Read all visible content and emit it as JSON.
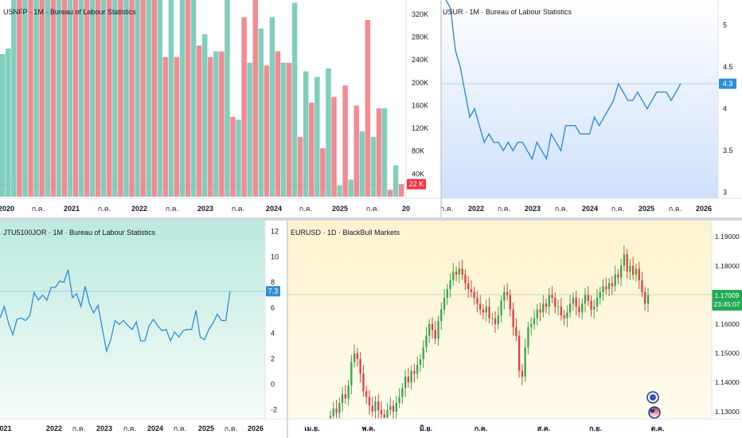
{
  "colors": {
    "up": "#7fcfbc",
    "down": "#f28b94",
    "line": "#2f8fd6",
    "candle_up": "#3aa34a",
    "candle_down": "#dd3f3f",
    "divider": "#d4d7dc",
    "axis_text": "#131722"
  },
  "chart_data": [
    {
      "id": "usnfp",
      "type": "bar",
      "title": "USNFP · 1M · Bureau of Labour Statistics",
      "xlabel": "",
      "ylabel": "",
      "ylim": [
        0,
        345
      ],
      "value_unit": "K",
      "x_tick_labels": [
        "2020",
        "ก.ค.",
        "2021",
        "ก.ค.",
        "2022",
        "ก.ค.",
        "2023",
        "ก.ค.",
        "2024",
        "ก.ค.",
        "2025",
        "ก.ค.",
        "20"
      ],
      "y_tick_labels": [
        "40K",
        "80K",
        "120K",
        "160K",
        "200K",
        "240K",
        "280K",
        "320K"
      ],
      "y_tick_values": [
        40,
        80,
        120,
        160,
        200,
        240,
        280,
        320
      ],
      "last_value_label": "22 K",
      "last_value": 22,
      "bars": [
        {
          "value": 250,
          "dir": "up"
        },
        {
          "value": 260,
          "dir": "up"
        },
        {
          "value": 345,
          "dir": "up"
        },
        {
          "value": 345,
          "dir": "down"
        },
        {
          "value": 345,
          "dir": "up"
        },
        {
          "value": 345,
          "dir": "down"
        },
        {
          "value": 345,
          "dir": "up"
        },
        {
          "value": 345,
          "dir": "down"
        },
        {
          "value": 345,
          "dir": "up"
        },
        {
          "value": 345,
          "dir": "down"
        },
        {
          "value": 345,
          "dir": "up"
        },
        {
          "value": 345,
          "dir": "down"
        },
        {
          "value": 345,
          "dir": "up"
        },
        {
          "value": 345,
          "dir": "down"
        },
        {
          "value": 345,
          "dir": "up"
        },
        {
          "value": 345,
          "dir": "down"
        },
        {
          "value": 345,
          "dir": "up"
        },
        {
          "value": 345,
          "dir": "down"
        },
        {
          "value": 345,
          "dir": "up"
        },
        {
          "value": 345,
          "dir": "down"
        },
        {
          "value": 345,
          "dir": "up"
        },
        {
          "value": 345,
          "dir": "down"
        },
        {
          "value": 345,
          "dir": "up"
        },
        {
          "value": 345,
          "dir": "down"
        },
        {
          "value": 345,
          "dir": "up"
        },
        {
          "value": 345,
          "dir": "down"
        },
        {
          "value": 345,
          "dir": "up"
        },
        {
          "value": 345,
          "dir": "down"
        },
        {
          "value": 345,
          "dir": "up"
        },
        {
          "value": 245,
          "dir": "down"
        },
        {
          "value": 345,
          "dir": "up"
        },
        {
          "value": 245,
          "dir": "down"
        },
        {
          "value": 345,
          "dir": "up"
        },
        {
          "value": 345,
          "dir": "down"
        },
        {
          "value": 345,
          "dir": "up"
        },
        {
          "value": 265,
          "dir": "down"
        },
        {
          "value": 285,
          "dir": "up"
        },
        {
          "value": 245,
          "dir": "down"
        },
        {
          "value": 255,
          "dir": "up"
        },
        {
          "value": 255,
          "dir": "down"
        },
        {
          "value": 345,
          "dir": "up"
        },
        {
          "value": 140,
          "dir": "down"
        },
        {
          "value": 135,
          "dir": "up"
        },
        {
          "value": 315,
          "dir": "down"
        },
        {
          "value": 235,
          "dir": "up"
        },
        {
          "value": 345,
          "dir": "down"
        },
        {
          "value": 295,
          "dir": "up"
        },
        {
          "value": 230,
          "dir": "down"
        },
        {
          "value": 315,
          "dir": "up"
        },
        {
          "value": 255,
          "dir": "down"
        },
        {
          "value": 235,
          "dir": "up"
        },
        {
          "value": 235,
          "dir": "down"
        },
        {
          "value": 340,
          "dir": "up"
        },
        {
          "value": 105,
          "dir": "down"
        },
        {
          "value": 220,
          "dir": "up"
        },
        {
          "value": 165,
          "dir": "down"
        },
        {
          "value": 210,
          "dir": "up"
        },
        {
          "value": 85,
          "dir": "down"
        },
        {
          "value": 225,
          "dir": "up"
        },
        {
          "value": 175,
          "dir": "down"
        },
        {
          "value": 20,
          "dir": "up"
        },
        {
          "value": 195,
          "dir": "down"
        },
        {
          "value": 30,
          "dir": "up"
        },
        {
          "value": 160,
          "dir": "down"
        },
        {
          "value": 115,
          "dir": "up"
        },
        {
          "value": 310,
          "dir": "down"
        },
        {
          "value": 105,
          "dir": "up"
        },
        {
          "value": 155,
          "dir": "down"
        },
        {
          "value": 155,
          "dir": "up"
        },
        {
          "value": 12,
          "dir": "down"
        },
        {
          "value": 55,
          "dir": "up"
        },
        {
          "value": 22,
          "dir": "down"
        }
      ]
    },
    {
      "id": "usur",
      "type": "line",
      "title": "USUR · 1M · Bureau of Labour Statistics",
      "xlabel": "",
      "ylabel": "",
      "ylim": [
        2.95,
        5.3
      ],
      "x_tick_labels": [
        "ก.ค.",
        "2022",
        "ก.ค.",
        "2023",
        "ก.ค.",
        "2024",
        "ก.ค.",
        "2025",
        "ก.ค.",
        "2026"
      ],
      "y_tick_labels": [
        "3",
        "3.5",
        "4",
        "4.5",
        "5"
      ],
      "y_tick_values": [
        3,
        3.5,
        4,
        4.5,
        5
      ],
      "last_value_label": "4.3",
      "last_value": 4.3,
      "values": [
        5.3,
        5.2,
        4.7,
        4.5,
        4.2,
        3.9,
        4.0,
        3.8,
        3.6,
        3.7,
        3.6,
        3.6,
        3.5,
        3.6,
        3.5,
        3.6,
        3.6,
        3.5,
        3.4,
        3.6,
        3.5,
        3.4,
        3.7,
        3.6,
        3.5,
        3.8,
        3.8,
        3.8,
        3.7,
        3.7,
        3.7,
        3.9,
        3.8,
        3.9,
        4.0,
        4.1,
        4.3,
        4.2,
        4.1,
        4.1,
        4.2,
        4.1,
        4.0,
        4.1,
        4.2,
        4.2,
        4.2,
        4.1,
        4.2,
        4.3
      ]
    },
    {
      "id": "jtu",
      "type": "line",
      "title": "JTU5100JOR · 1M · Bureau of Labour Statistics",
      "xlabel": "",
      "ylabel": "",
      "ylim": [
        -2.6,
        12.6
      ],
      "x_tick_labels": [
        "021",
        "2022",
        "ก.ค.",
        "2023",
        "ก.ค.",
        "2024",
        "ก.ค.",
        "2025",
        "ก.ค.",
        "2026"
      ],
      "y_tick_labels": [
        "-2",
        "0",
        "2",
        "4",
        "6",
        "8",
        "10",
        "12"
      ],
      "y_tick_values": [
        -2,
        0,
        2,
        4,
        6,
        8,
        10,
        12
      ],
      "last_value_label": "7.3",
      "last_value": 7.3,
      "values": [
        5.2,
        6.1,
        4.8,
        3.9,
        5.1,
        5.2,
        5.0,
        5.4,
        7.2,
        6.6,
        7.0,
        6.6,
        7.6,
        7.6,
        8.1,
        8.0,
        9.0,
        6.8,
        7.1,
        6.1,
        7.7,
        6.3,
        5.6,
        6.2,
        4.4,
        2.6,
        3.5,
        5.0,
        4.7,
        5.0,
        4.6,
        4.3,
        4.9,
        3.4,
        3.4,
        4.6,
        5.1,
        4.6,
        4.2,
        4.3,
        3.4,
        4.1,
        3.7,
        4.2,
        4.3,
        4.3,
        5.8,
        3.7,
        3.5,
        4.3,
        4.8,
        5.5,
        5.0,
        5.0,
        7.3
      ]
    },
    {
      "id": "eurusd",
      "type": "candlestick",
      "title": "EURUSD · 1D · BlackBull Markets",
      "xlabel": "",
      "ylabel": "",
      "ylim": [
        1.1275,
        1.1955
      ],
      "x_tick_labels": [
        "เม.ย.",
        "พ.ค.",
        "มิ.ย.",
        "ก.ค.",
        "ส.ค.",
        "ก.ย.",
        "ต.ค."
      ],
      "y_tick_labels": [
        "1.13000",
        "1.14000",
        "1.15000",
        "1.16000",
        "1.17000",
        "1.18000",
        "1.19000"
      ],
      "y_tick_values": [
        1.13,
        1.14,
        1.15,
        1.16,
        1.17,
        1.18,
        1.19
      ],
      "last_price_label": "1.17009",
      "last_price": 1.17009,
      "countdown_label": "23:45:07",
      "closes": [
        1.1285,
        1.131,
        1.1295,
        1.133,
        1.136,
        1.1345,
        1.139,
        1.147,
        1.15,
        1.148,
        1.143,
        1.137,
        1.135,
        1.132,
        1.13,
        1.1335,
        1.1305,
        1.129,
        1.128,
        1.1305,
        1.132,
        1.13,
        1.133,
        1.135,
        1.138,
        1.142,
        1.14,
        1.144,
        1.143,
        1.146,
        1.148,
        1.152,
        1.156,
        1.16,
        1.158,
        1.155,
        1.161,
        1.165,
        1.169,
        1.172,
        1.175,
        1.178,
        1.177,
        1.179,
        1.177,
        1.174,
        1.172,
        1.171,
        1.169,
        1.167,
        1.165,
        1.164,
        1.166,
        1.162,
        1.162,
        1.16,
        1.163,
        1.168,
        1.171,
        1.17,
        1.165,
        1.159,
        1.156,
        1.144,
        1.142,
        1.152,
        1.159,
        1.16,
        1.162,
        1.165,
        1.164,
        1.167,
        1.166,
        1.17,
        1.169,
        1.166,
        1.166,
        1.163,
        1.162,
        1.164,
        1.167,
        1.169,
        1.166,
        1.164,
        1.167,
        1.17,
        1.168,
        1.165,
        1.166,
        1.169,
        1.171,
        1.173,
        1.172,
        1.174,
        1.173,
        1.177,
        1.176,
        1.18,
        1.184,
        1.178,
        1.18,
        1.177,
        1.179,
        1.175,
        1.171,
        1.167,
        1.17
      ]
    }
  ]
}
